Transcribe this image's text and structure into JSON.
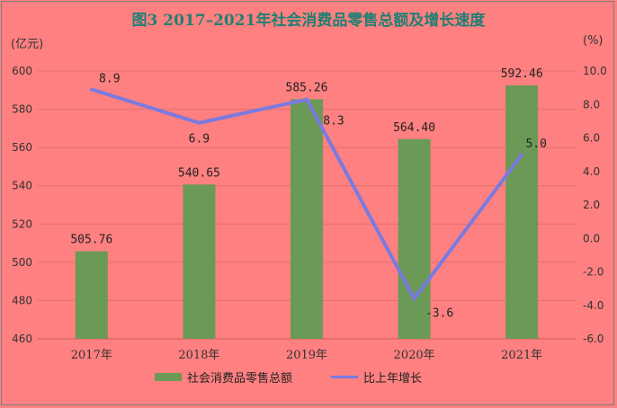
{
  "chart_data": {
    "type": "bar",
    "title": "图3  2017–2021年社会消费品零售总额及增长速度",
    "ylabel_left": "(亿元)",
    "ylabel_right": "(%)",
    "categories": [
      "2017年",
      "2018年",
      "2019年",
      "2020年",
      "2021年"
    ],
    "ylim_left": [
      460,
      600
    ],
    "yticks_left": [
      "460",
      "480",
      "500",
      "520",
      "540",
      "560",
      "580",
      "600"
    ],
    "ylim_right": [
      -6,
      10
    ],
    "yticks_right": [
      "-6.0",
      "-4.0",
      "-2.0",
      "0.0",
      "2.0",
      "4.0",
      "6.0",
      "8.0",
      "10.0"
    ],
    "series": [
      {
        "name": "社会消费品零售总额",
        "type": "bar",
        "axis": "left",
        "color": "#6a9a55",
        "values": [
          505.76,
          540.65,
          585.26,
          564.4,
          592.46
        ],
        "labels": [
          "505.76",
          "540.65",
          "585.26",
          "564.40",
          "592.46"
        ]
      },
      {
        "name": "比上年增长",
        "type": "line",
        "axis": "right",
        "color": "#7a7ae0",
        "values": [
          8.9,
          6.9,
          8.3,
          -3.6,
          5.0
        ],
        "labels": [
          "8.9",
          "6.9",
          "8.3",
          "-3.6",
          "5.0"
        ]
      }
    ],
    "grid": true,
    "legend": "bottom"
  }
}
